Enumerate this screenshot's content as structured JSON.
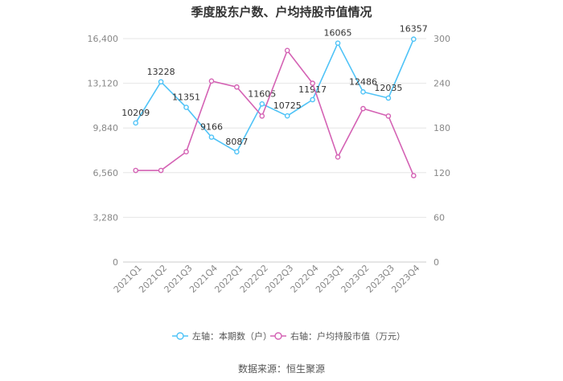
{
  "title": "季度股东户数、户均持股市值情况",
  "source": "数据来源：恒生聚源",
  "chart_data": {
    "type": "line",
    "categories": [
      "2021Q1",
      "2021Q2",
      "2021Q3",
      "2021Q4",
      "2022Q1",
      "2022Q2",
      "2022Q3",
      "2022Q4",
      "2023Q1",
      "2023Q2",
      "2023Q3",
      "2023Q4"
    ],
    "left_axis": {
      "ticks": [
        "0",
        "3,280",
        "6,560",
        "9,840",
        "13,120",
        "16,400"
      ],
      "range": [
        0,
        16400
      ]
    },
    "right_axis": {
      "ticks": [
        "0",
        "60",
        "120",
        "180",
        "240",
        "300"
      ],
      "range": [
        0,
        300
      ]
    },
    "series": [
      {
        "name": "左轴：本期数（户）",
        "axis": "left",
        "color": "#4fc3f7",
        "values": [
          10209,
          13228,
          11351,
          9166,
          8087,
          11605,
          10725,
          11917,
          16065,
          12486,
          12035,
          16357
        ],
        "labels": [
          "10209",
          "13228",
          "11351",
          "9166",
          "8087",
          "11605",
          "10725",
          "11917",
          "16065",
          "12486",
          "12035",
          "16357"
        ]
      },
      {
        "name": "右轴：户均持股市值（万元）",
        "axis": "right",
        "color": "#d462b4",
        "values": [
          123,
          123,
          148,
          243,
          235,
          196,
          284,
          240,
          141,
          206,
          196,
          116
        ]
      }
    ],
    "grid": true,
    "legend_position": "bottom"
  }
}
